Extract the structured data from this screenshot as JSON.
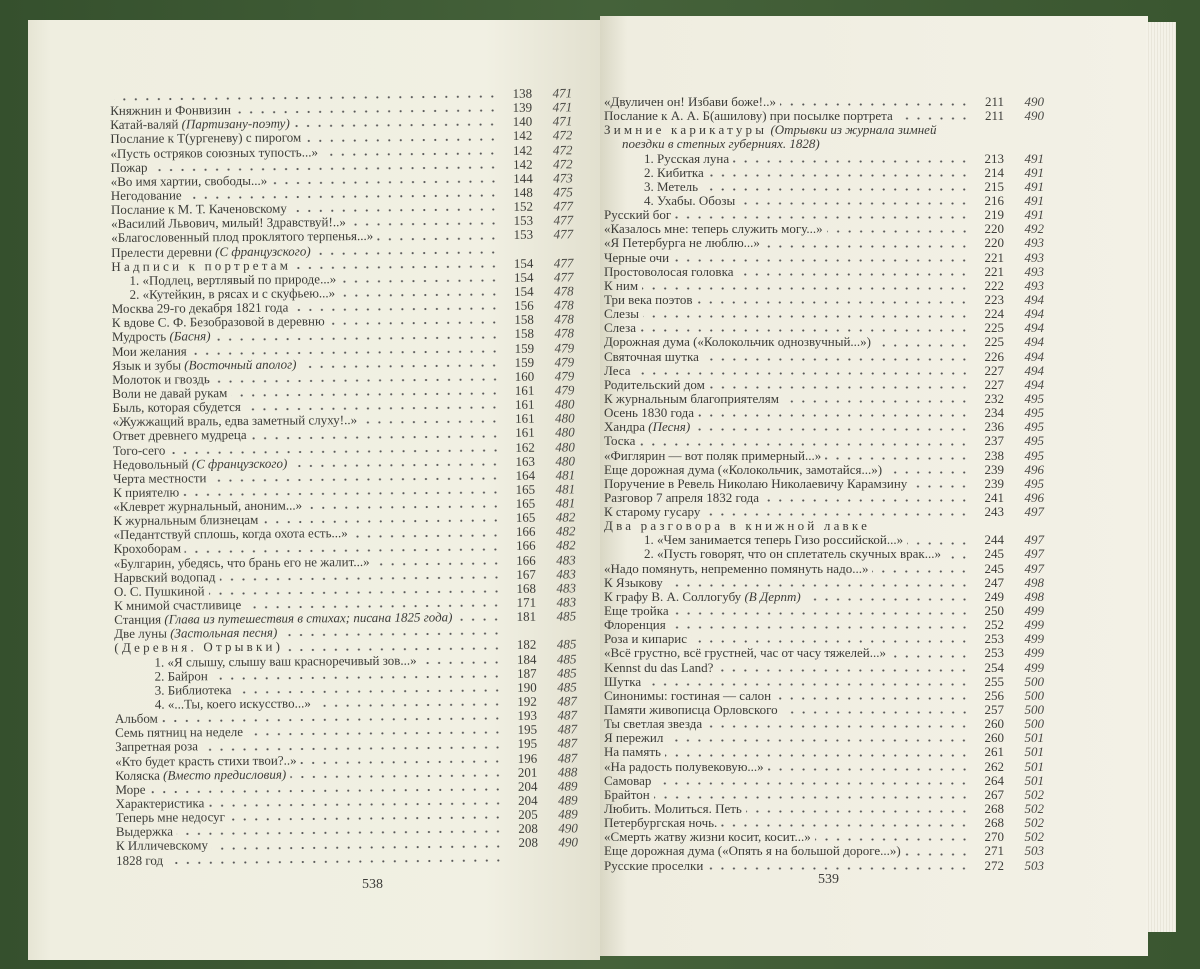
{
  "colors": {
    "cover": "#3b5431",
    "paper": "#f0efe2",
    "ink": "#3c3c38"
  },
  "left_page": {
    "page_number": "538",
    "entries": [
      {
        "t": "",
        "p": "138",
        "c": "471"
      },
      {
        "t": "Княжнин и Фонвизин",
        "p": "139",
        "c": "471"
      },
      {
        "t": "Катай-валяй ",
        "n": "(Партизану-поэту)",
        "p": "140",
        "c": "471"
      },
      {
        "t": "Послание к Т(ургеневу) с пирогом",
        "p": "142",
        "c": "472"
      },
      {
        "t": "«Пусть остряков союзных тупость...»",
        "p": "142",
        "c": "472"
      },
      {
        "t": "Пожар",
        "p": "142",
        "c": "472"
      },
      {
        "t": "«Во имя хартии, свободы...»",
        "p": "144",
        "c": "473"
      },
      {
        "t": "Негодование",
        "p": "148",
        "c": "475"
      },
      {
        "t": "Послание к М. Т. Каченовскому",
        "p": "152",
        "c": "477"
      },
      {
        "t": "«Василий Львович, милый! Здравствуй!..»",
        "p": "153",
        "c": "477"
      },
      {
        "t": "«Благословенный плод проклятого терпенья...»",
        "p": "153",
        "c": "477"
      },
      {
        "t": "Прелести деревни ",
        "n": "(С французского)",
        "p": "",
        "c": ""
      },
      {
        "t": "Надписи к портретам",
        "h": true,
        "p": "154",
        "c": "477"
      },
      {
        "t": "1. «Подлец, вертлявый по природе...»",
        "i": 1,
        "p": "154",
        "c": "477"
      },
      {
        "t": "2. «Кутейкин, в рясах и с скуфьею...»",
        "i": 1,
        "p": "154",
        "c": "478"
      },
      {
        "t": "Москва 29-го декабря 1821 года",
        "p": "156",
        "c": "478"
      },
      {
        "t": "К вдове С. Ф. Безобразовой в деревню",
        "p": "158",
        "c": "478"
      },
      {
        "t": "Мудрость ",
        "n": "(Басня)",
        "p": "158",
        "c": "478"
      },
      {
        "t": "Мои желания",
        "p": "159",
        "c": "479"
      },
      {
        "t": "Язык и зубы ",
        "n": "(Восточный аполог)",
        "p": "159",
        "c": "479"
      },
      {
        "t": "Молоток и гвоздь",
        "p": "160",
        "c": "479"
      },
      {
        "t": "Воли не давай рукам",
        "p": "161",
        "c": "479"
      },
      {
        "t": "Быль, которая сбудется",
        "p": "161",
        "c": "480"
      },
      {
        "t": "«Жужжащий враль, едва заметный слуху!..»",
        "p": "161",
        "c": "480"
      },
      {
        "t": "Ответ древнего мудреца",
        "p": "161",
        "c": "480"
      },
      {
        "t": "Того-сего",
        "p": "162",
        "c": "480"
      },
      {
        "t": "Недовольный ",
        "n": "(С французского)",
        "p": "163",
        "c": "480"
      },
      {
        "t": "Черта местности",
        "p": "164",
        "c": "481"
      },
      {
        "t": "К приятелю",
        "p": "165",
        "c": "481"
      },
      {
        "t": "«Клеврет журнальный, аноним...»",
        "p": "165",
        "c": "481"
      },
      {
        "t": "К журнальным близнецам",
        "p": "165",
        "c": "482"
      },
      {
        "t": "«Педантствуй сплошь, когда охота есть...»",
        "p": "166",
        "c": "482"
      },
      {
        "t": "Крохоборам",
        "p": "166",
        "c": "482"
      },
      {
        "t": "«Булгарин, убедясь, что брань его не жалит...»",
        "p": "166",
        "c": "483"
      },
      {
        "t": "Нарвский водопад",
        "p": "167",
        "c": "483"
      },
      {
        "t": "О. С. Пушкиной",
        "p": "168",
        "c": "483"
      },
      {
        "t": "К мнимой счастливице",
        "p": "171",
        "c": "483"
      },
      {
        "t": "Станция ",
        "n": "(Глава из путешествия в стихах; писана 1825 года)",
        "p": "181",
        "c": "485"
      },
      {
        "t": "Две луны ",
        "n": "(Застольная песня)",
        "p": "",
        "c": ""
      },
      {
        "t": "(Деревня. Отрывки)",
        "h": true,
        "p": "182",
        "c": "485"
      },
      {
        "t": "1. «Я слышу, слышу ваш красноречивый зов...»",
        "i": 2,
        "p": "184",
        "c": "485"
      },
      {
        "t": "2. Байрон",
        "i": 2,
        "p": "187",
        "c": "485"
      },
      {
        "t": "3. Библиотека",
        "i": 2,
        "p": "190",
        "c": "485"
      },
      {
        "t": "4. «...Ты, коего искусство...»",
        "i": 2,
        "p": "192",
        "c": "487"
      },
      {
        "t": "Альбом",
        "p": "193",
        "c": "487"
      },
      {
        "t": "Семь пятниц на неделе",
        "p": "195",
        "c": "487"
      },
      {
        "t": "Запретная роза",
        "p": "195",
        "c": "487"
      },
      {
        "t": "«Кто будет красть стихи твои?..»",
        "p": "196",
        "c": "487"
      },
      {
        "t": "Коляска ",
        "n": "(Вместо предисловия)",
        "p": "201",
        "c": "488"
      },
      {
        "t": "Море",
        "p": "204",
        "c": "489"
      },
      {
        "t": "Характеристика",
        "p": "204",
        "c": "489"
      },
      {
        "t": "Теперь мне недосуг",
        "p": "205",
        "c": "489"
      },
      {
        "t": "Выдержка",
        "p": "208",
        "c": "490"
      },
      {
        "t": "К Илличевскому",
        "p": "208",
        "c": "490"
      },
      {
        "t": "1828 год",
        "p": "",
        "c": ""
      }
    ]
  },
  "right_page": {
    "page_number": "539",
    "entries": [
      {
        "t": "«Двуличен он! Избави боже!..»",
        "p": "211",
        "c": "490"
      },
      {
        "t": "Послание к А. А. Б(ашилову) при посылке портрета",
        "p": "211",
        "c": "490"
      },
      {
        "t": "Зимние карикатуры",
        "h": true,
        "n": " (Отрывки из журнала зимней",
        "nodots": true,
        "p": "",
        "c": ""
      },
      {
        "t": "",
        "n": "поездки в степных губерниях. 1828)",
        "i": 1,
        "nodots": true,
        "p": "",
        "c": ""
      },
      {
        "t": "1. Русская луна",
        "i": 2,
        "p": "213",
        "c": "491"
      },
      {
        "t": "2. Кибитка",
        "i": 2,
        "p": "214",
        "c": "491"
      },
      {
        "t": "3. Метель",
        "i": 2,
        "p": "215",
        "c": "491"
      },
      {
        "t": "4. Ухабы. Обозы",
        "i": 2,
        "p": "216",
        "c": "491"
      },
      {
        "t": "Русский бог",
        "p": "219",
        "c": "491"
      },
      {
        "t": "«Казалось мне: теперь служить могу...»",
        "p": "220",
        "c": "492"
      },
      {
        "t": "«Я Петербурга не люблю...»",
        "p": "220",
        "c": "493"
      },
      {
        "t": "Черные очи",
        "p": "221",
        "c": "493"
      },
      {
        "t": "Простоволосая головка",
        "p": "221",
        "c": "493"
      },
      {
        "t": "К ним",
        "p": "222",
        "c": "493"
      },
      {
        "t": "Три века поэтов",
        "p": "223",
        "c": "494"
      },
      {
        "t": "Слезы",
        "p": "224",
        "c": "494"
      },
      {
        "t": "Слеза",
        "p": "225",
        "c": "494"
      },
      {
        "t": "Дорожная дума («Колокольчик однозвучный...»)",
        "p": "225",
        "c": "494"
      },
      {
        "t": "Святочная шутка",
        "p": "226",
        "c": "494"
      },
      {
        "t": "Леса",
        "p": "227",
        "c": "494"
      },
      {
        "t": "Родительский дом",
        "p": "227",
        "c": "494"
      },
      {
        "t": "К журнальным благоприятелям",
        "p": "232",
        "c": "495"
      },
      {
        "t": "Осень 1830 года",
        "p": "234",
        "c": "495"
      },
      {
        "t": "Хандра ",
        "n": "(Песня)",
        "p": "236",
        "c": "495"
      },
      {
        "t": "Тоска",
        "p": "237",
        "c": "495"
      },
      {
        "t": "«Фиглярин — вот поляк примерный...»",
        "p": "238",
        "c": "495"
      },
      {
        "t": "Еще дорожная дума («Колокольчик, замотайся...»)",
        "p": "239",
        "c": "496"
      },
      {
        "t": "Поручение в Ревель Николаю Николаевичу Карамзину",
        "p": "239",
        "c": "495"
      },
      {
        "t": "Разговор 7 апреля 1832 года",
        "p": "241",
        "c": "496"
      },
      {
        "t": "К старому гусару",
        "p": "243",
        "c": "497"
      },
      {
        "t": "Два разговора в книжной лавке",
        "h": true,
        "nodots": true,
        "p": "",
        "c": ""
      },
      {
        "t": "1. «Чем занимается теперь Гизо российской...»",
        "i": 2,
        "p": "244",
        "c": "497"
      },
      {
        "t": "2. «Пусть говорят, что он сплетатель скучных врак...»",
        "i": 2,
        "p": "245",
        "c": "497"
      },
      {
        "t": "«Надо помянуть, непременно помянуть надо...»",
        "p": "245",
        "c": "497"
      },
      {
        "t": "К Языкову",
        "p": "247",
        "c": "498"
      },
      {
        "t": "К графу В. А. Соллогубу ",
        "n": "(В Дерпт)",
        "p": "249",
        "c": "498"
      },
      {
        "t": "Еще тройка",
        "p": "250",
        "c": "499"
      },
      {
        "t": "Флоренция",
        "p": "252",
        "c": "499"
      },
      {
        "t": "Роза и кипарис",
        "p": "253",
        "c": "499"
      },
      {
        "t": "«Всё грустно, всё грустней, час от часу тяжелей...»",
        "p": "253",
        "c": "499"
      },
      {
        "t": "Kennst du das Land?",
        "p": "254",
        "c": "499"
      },
      {
        "t": "Шутка",
        "p": "255",
        "c": "500"
      },
      {
        "t": "Синонимы: гостиная — салон",
        "p": "256",
        "c": "500"
      },
      {
        "t": "Памяти живописца Орловского",
        "p": "257",
        "c": "500"
      },
      {
        "t": "Ты светлая звезда",
        "p": "260",
        "c": "500"
      },
      {
        "t": "Я пережил",
        "p": "260",
        "c": "501"
      },
      {
        "t": "На память",
        "p": "261",
        "c": "501"
      },
      {
        "t": "«На радость полувековую...»",
        "p": "262",
        "c": "501"
      },
      {
        "t": "Самовар",
        "p": "264",
        "c": "501"
      },
      {
        "t": "Брайтон",
        "p": "267",
        "c": "502"
      },
      {
        "t": "Любить. Молиться. Петь",
        "p": "268",
        "c": "502"
      },
      {
        "t": "Петербургская ночь.",
        "p": "268",
        "c": "502"
      },
      {
        "t": "«Смерть жатву жизни косит, косит...»",
        "p": "270",
        "c": "502"
      },
      {
        "t": "Еще дорожная дума («Опять я на большой дороге...»)",
        "p": "271",
        "c": "503"
      },
      {
        "t": "Русские проселки",
        "p": "272",
        "c": "503"
      }
    ]
  }
}
